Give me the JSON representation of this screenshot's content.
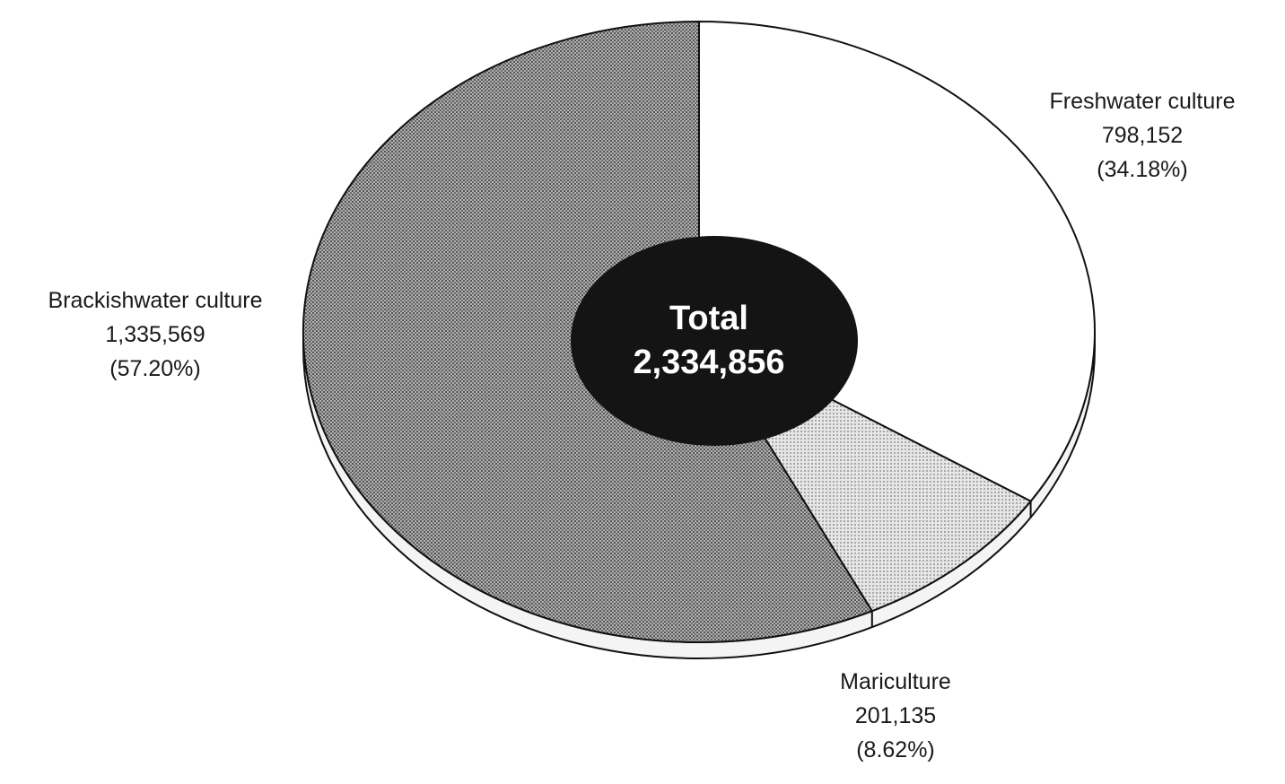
{
  "chart_data": {
    "type": "pie",
    "total": {
      "label": "Total",
      "value": "2,334,856"
    },
    "slices": [
      {
        "name": "Freshwater culture",
        "value": 798152,
        "value_label": "798,152",
        "percent_label": "(34.18%)",
        "percent": 34.18,
        "color": "#ffffff"
      },
      {
        "name": "Mariculture",
        "value": 201135,
        "value_label": "201,135",
        "percent_label": "(8.62%)",
        "percent": 8.62,
        "color": "#d2d2d2"
      },
      {
        "name": "Brackishwater culture",
        "value": 1335569,
        "value_label": "1,335,569",
        "percent_label": "(57.20%)",
        "percent": 57.2,
        "color": "#8a8a8a"
      }
    ],
    "center_color": "#141414",
    "outline_color": "#111111",
    "legend": "none"
  }
}
